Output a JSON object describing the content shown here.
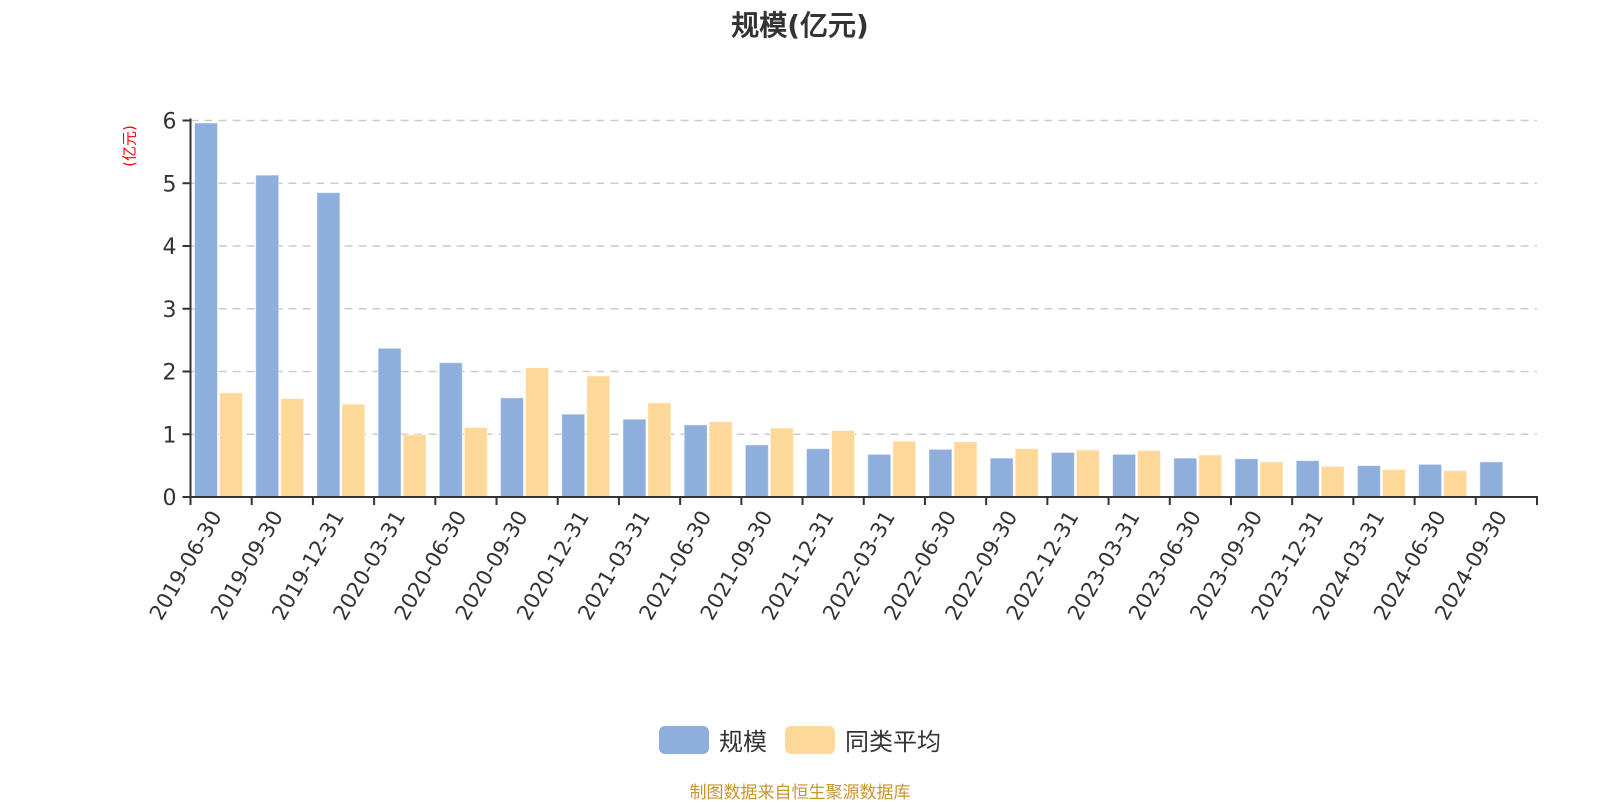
{
  "title": "规模(亿元)",
  "footer": "制图数据来自恒生聚源数据库",
  "colors": {
    "series_1": "#8eaedb",
    "series_2": "#fed899",
    "unit_label": "#ff0000",
    "grid": "#cccccc",
    "axis": "#333333",
    "footer": "#c8962e"
  },
  "legend": [
    {
      "label": "规模",
      "color": "#8eaedb"
    },
    {
      "label": "同类平均",
      "color": "#fed899"
    }
  ],
  "chart_data": {
    "type": "bar",
    "title": "规模(亿元)",
    "xlabel": "",
    "ylabel": "(亿元)",
    "ylim": [
      0,
      6
    ],
    "yticks": [
      0,
      1,
      2,
      3,
      4,
      5,
      6
    ],
    "grid": true,
    "legend_position": "bottom",
    "categories": [
      "2019-06-30",
      "2019-09-30",
      "2019-12-31",
      "2020-03-31",
      "2020-06-30",
      "2020-09-30",
      "2020-12-31",
      "2021-03-31",
      "2021-06-30",
      "2021-09-30",
      "2021-12-31",
      "2022-03-31",
      "2022-06-30",
      "2022-09-30",
      "2022-12-31",
      "2023-03-31",
      "2023-06-30",
      "2023-09-30",
      "2023-12-31",
      "2024-03-31",
      "2024-06-30",
      "2024-09-30"
    ],
    "series": [
      {
        "name": "规模",
        "values": [
          5.96,
          5.13,
          4.85,
          2.37,
          2.14,
          1.58,
          1.32,
          1.24,
          1.15,
          0.83,
          0.77,
          0.68,
          0.76,
          0.62,
          0.71,
          0.68,
          0.62,
          0.61,
          0.58,
          0.5,
          0.52,
          0.56
        ]
      },
      {
        "name": "同类平均",
        "values": [
          1.66,
          1.57,
          1.48,
          0.99,
          1.11,
          2.06,
          1.93,
          1.5,
          1.2,
          1.1,
          1.06,
          0.89,
          0.88,
          0.77,
          0.75,
          0.74,
          0.67,
          0.56,
          0.49,
          0.44,
          0.42,
          null
        ]
      }
    ]
  }
}
